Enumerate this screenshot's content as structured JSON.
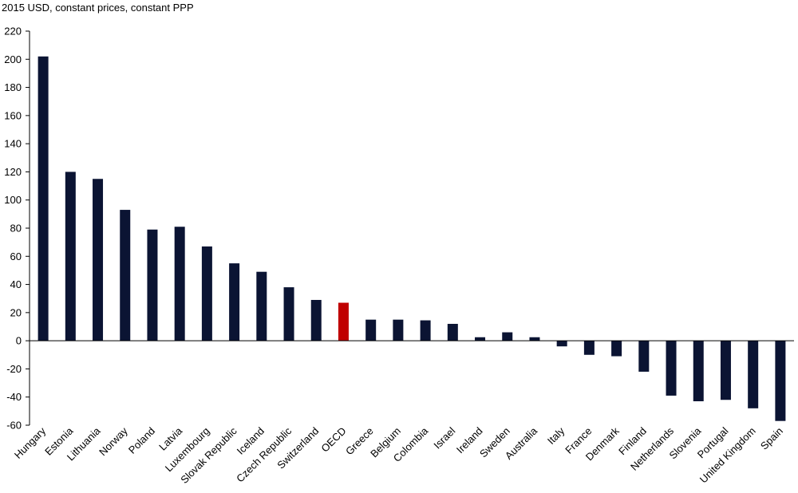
{
  "chart_data": {
    "type": "bar",
    "unit_label": "2015 USD, constant prices, constant PPP",
    "categories": [
      "Hungary",
      "Estonia",
      "Lithuania",
      "Norway",
      "Poland",
      "Latvia",
      "Luxembourg",
      "Slovak Republic",
      "Iceland",
      "Czech Republic",
      "Switzerland",
      "OECD",
      "Greece",
      "Belgium",
      "Colombia",
      "Israel",
      "Ireland",
      "Sweden",
      "Australia",
      "Italy",
      "France",
      "Denmark",
      "Finland",
      "Netherlands",
      "Slovenia",
      "Portugal",
      "United Kingdom",
      "Spain"
    ],
    "values": [
      202,
      120,
      115,
      93,
      79,
      81,
      67,
      55,
      49,
      38,
      29,
      27,
      15,
      15,
      14.5,
      12,
      2.5,
      6,
      2.5,
      -4,
      -10,
      -11,
      -22,
      -39,
      -43,
      -42,
      -48,
      -57
    ],
    "highlight_category": "OECD",
    "ylim": [
      -60,
      220
    ],
    "yticks": [
      220,
      200,
      180,
      160,
      140,
      120,
      100,
      80,
      60,
      40,
      20,
      0,
      -20,
      -40,
      -60
    ],
    "colors": {
      "bar": "#0b1433",
      "highlight": "#c00000",
      "axis": "#000000"
    },
    "grid": false,
    "legend": "none"
  }
}
